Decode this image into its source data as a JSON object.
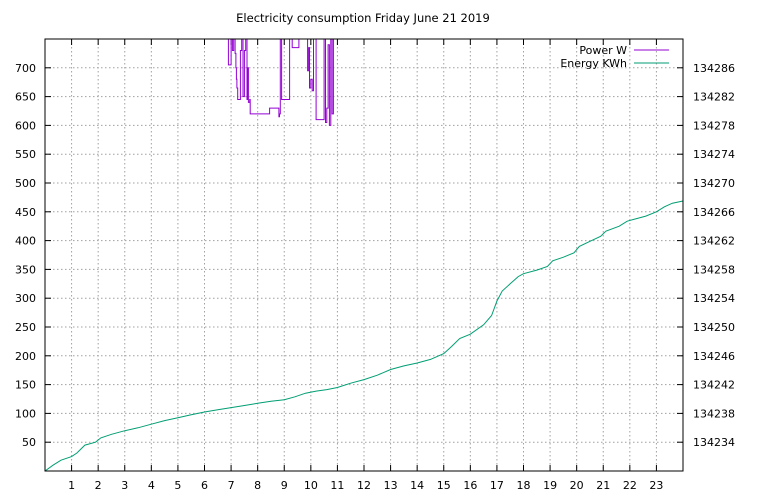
{
  "chart_data": {
    "type": "line",
    "title": "Electricity consumption Friday June 21 2019",
    "grid": true,
    "legend_position": "top-right",
    "x": {
      "range": [
        0,
        24
      ],
      "ticks": [
        1,
        2,
        3,
        4,
        5,
        6,
        7,
        8,
        9,
        10,
        11,
        12,
        13,
        14,
        15,
        16,
        17,
        18,
        19,
        20,
        21,
        22,
        23
      ]
    },
    "y_left": {
      "range": [
        0,
        750
      ],
      "ticks": [
        50,
        100,
        150,
        200,
        250,
        300,
        350,
        400,
        450,
        500,
        550,
        600,
        650,
        700
      ]
    },
    "y_right": {
      "range": [
        134230,
        134290
      ],
      "ticks": [
        134234,
        134238,
        134242,
        134246,
        134250,
        134254,
        134258,
        134262,
        134266,
        134270,
        134274,
        134278,
        134282,
        134286
      ]
    },
    "series": [
      {
        "name": "Power W",
        "axis": "left",
        "color": "#9400d3",
        "step": true,
        "points": [
          [
            6.88,
            750
          ],
          [
            6.9,
            705
          ],
          [
            6.98,
            705
          ],
          [
            7.0,
            750
          ],
          [
            7.05,
            730
          ],
          [
            7.1,
            750
          ],
          [
            7.15,
            725
          ],
          [
            7.18,
            700
          ],
          [
            7.2,
            680
          ],
          [
            7.22,
            665
          ],
          [
            7.25,
            645
          ],
          [
            7.32,
            645
          ],
          [
            7.35,
            730
          ],
          [
            7.4,
            750
          ],
          [
            7.45,
            650
          ],
          [
            7.5,
            730
          ],
          [
            7.55,
            750
          ],
          [
            7.6,
            645
          ],
          [
            7.62,
            700
          ],
          [
            7.65,
            640
          ],
          [
            7.7,
            645
          ],
          [
            7.72,
            620
          ],
          [
            7.85,
            620
          ],
          [
            8.4,
            620
          ],
          [
            8.45,
            630
          ],
          [
            8.75,
            630
          ],
          [
            8.8,
            615
          ],
          [
            8.82,
            620
          ],
          [
            8.85,
            750
          ],
          [
            8.9,
            645
          ],
          [
            9.1,
            645
          ],
          [
            9.2,
            750
          ],
          [
            9.3,
            735
          ],
          [
            9.5,
            735
          ],
          [
            9.55,
            750
          ],
          [
            9.85,
            750
          ],
          [
            9.88,
            695
          ],
          [
            9.92,
            735
          ],
          [
            9.95,
            665
          ],
          [
            10.0,
            680
          ],
          [
            10.05,
            660
          ],
          [
            10.1,
            750
          ],
          [
            10.2,
            610
          ],
          [
            10.45,
            610
          ],
          [
            10.5,
            750
          ],
          [
            10.55,
            605
          ],
          [
            10.6,
            630
          ],
          [
            10.65,
            740
          ],
          [
            10.7,
            600
          ],
          [
            10.75,
            750
          ],
          [
            10.8,
            620
          ],
          [
            10.85,
            750
          ],
          [
            10.9,
            750
          ]
        ]
      },
      {
        "name": "Energy KWh",
        "axis": "right",
        "color": "#009e73",
        "step": false,
        "points": [
          [
            0.0,
            134230.0
          ],
          [
            0.3,
            134230.8
          ],
          [
            0.6,
            134231.5
          ],
          [
            1.0,
            134232.0
          ],
          [
            1.2,
            134232.5
          ],
          [
            1.5,
            134233.6
          ],
          [
            1.9,
            134234.0
          ],
          [
            2.1,
            134234.6
          ],
          [
            2.5,
            134235.1
          ],
          [
            3.0,
            134235.6
          ],
          [
            3.5,
            134236.0
          ],
          [
            4.0,
            134236.5
          ],
          [
            4.5,
            134237.0
          ],
          [
            5.0,
            134237.4
          ],
          [
            5.5,
            134237.8
          ],
          [
            6.0,
            134238.2
          ],
          [
            6.5,
            134238.5
          ],
          [
            7.0,
            134238.8
          ],
          [
            7.5,
            134239.1
          ],
          [
            8.0,
            134239.4
          ],
          [
            8.5,
            134239.7
          ],
          [
            9.0,
            134239.9
          ],
          [
            9.4,
            134240.3
          ],
          [
            9.8,
            134240.8
          ],
          [
            10.2,
            134241.1
          ],
          [
            10.6,
            134241.3
          ],
          [
            11.0,
            134241.6
          ],
          [
            11.5,
            134242.2
          ],
          [
            12.0,
            134242.7
          ],
          [
            12.5,
            134243.3
          ],
          [
            13.0,
            134244.1
          ],
          [
            13.5,
            134244.6
          ],
          [
            14.0,
            134245.0
          ],
          [
            14.5,
            134245.5
          ],
          [
            15.0,
            134246.3
          ],
          [
            15.3,
            134247.3
          ],
          [
            15.6,
            134248.4
          ],
          [
            16.0,
            134249.0
          ],
          [
            16.5,
            134250.3
          ],
          [
            16.8,
            134251.6
          ],
          [
            17.0,
            134253.6
          ],
          [
            17.2,
            134255.0
          ],
          [
            17.5,
            134256.0
          ],
          [
            17.8,
            134257.0
          ],
          [
            18.0,
            134257.4
          ],
          [
            18.5,
            134257.9
          ],
          [
            18.9,
            134258.4
          ],
          [
            19.1,
            134259.2
          ],
          [
            19.5,
            134259.7
          ],
          [
            19.9,
            134260.3
          ],
          [
            20.1,
            134261.2
          ],
          [
            20.5,
            134261.9
          ],
          [
            20.9,
            134262.6
          ],
          [
            21.1,
            134263.3
          ],
          [
            21.6,
            134264.0
          ],
          [
            21.9,
            134264.7
          ],
          [
            22.2,
            134265.0
          ],
          [
            22.6,
            134265.4
          ],
          [
            23.0,
            134266.0
          ],
          [
            23.3,
            134266.7
          ],
          [
            23.6,
            134267.2
          ],
          [
            24.0,
            134267.5
          ]
        ]
      }
    ]
  }
}
